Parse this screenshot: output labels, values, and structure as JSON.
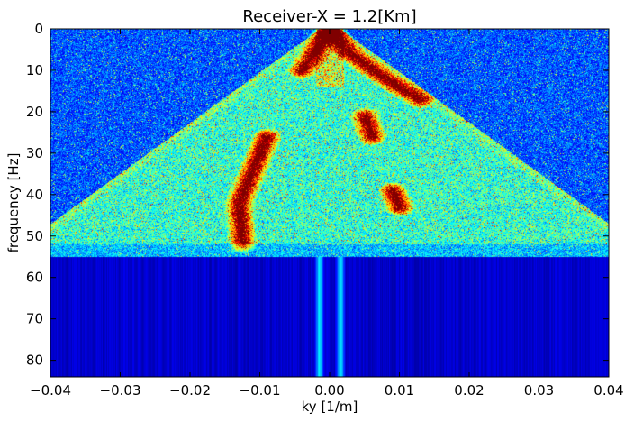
{
  "chart_data": {
    "type": "heatmap",
    "title": "Receiver-X = 1.2[Km]",
    "xlabel": "ky [1/m]",
    "ylabel": "frequency [Hz]",
    "xlim": [
      -0.04,
      0.04
    ],
    "ylim": [
      84,
      0
    ],
    "x_ticks": [
      {
        "value": -0.04,
        "label": "−0.04"
      },
      {
        "value": -0.03,
        "label": "−0.03"
      },
      {
        "value": -0.02,
        "label": "−0.02"
      },
      {
        "value": -0.01,
        "label": "−0.01"
      },
      {
        "value": 0.0,
        "label": "0.00"
      },
      {
        "value": 0.01,
        "label": "0.01"
      },
      {
        "value": 0.02,
        "label": "0.02"
      },
      {
        "value": 0.03,
        "label": "0.03"
      },
      {
        "value": 0.04,
        "label": "0.04"
      }
    ],
    "y_ticks": [
      {
        "value": 0,
        "label": "0"
      },
      {
        "value": 10,
        "label": "10"
      },
      {
        "value": 20,
        "label": "20"
      },
      {
        "value": 30,
        "label": "30"
      },
      {
        "value": 40,
        "label": "40"
      },
      {
        "value": 50,
        "label": "50"
      },
      {
        "value": 60,
        "label": "60"
      },
      {
        "value": 70,
        "label": "70"
      },
      {
        "value": 80,
        "label": "80"
      }
    ],
    "colormap": "jet",
    "grid": false,
    "features": {
      "signal_band_max_frequency": 55,
      "strong_arms": [
        {
          "points": [
            [
              -0.0005,
              1
            ],
            [
              -0.002,
              5
            ],
            [
              -0.004,
              10
            ]
          ]
        },
        {
          "points": [
            [
              0.0005,
              1
            ],
            [
              0.003,
              6
            ],
            [
              0.008,
              12
            ],
            [
              0.013,
              17
            ]
          ]
        },
        {
          "points": [
            [
              -0.009,
              26
            ],
            [
              -0.011,
              34
            ],
            [
              -0.013,
              42
            ],
            [
              -0.0125,
              52
            ]
          ]
        },
        {
          "points": [
            [
              0.005,
              21
            ],
            [
              0.006,
              26
            ]
          ]
        },
        {
          "points": [
            [
              0.009,
              39
            ],
            [
              0.01,
              43
            ]
          ]
        }
      ],
      "cone_edges": {
        "apex": [
          0.0,
          0.0
        ],
        "left_edge": [
          -0.022,
          25
        ],
        "right_edge": [
          0.021,
          28
        ]
      },
      "central_stripes_ky": [
        -0.0015,
        0.0015
      ]
    }
  }
}
